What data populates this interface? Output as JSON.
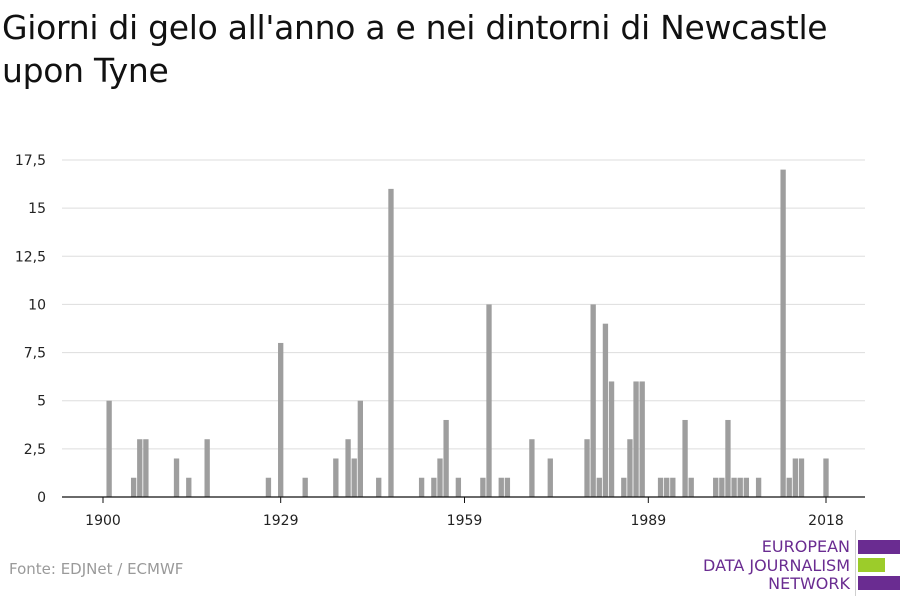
{
  "title": "Giorni di gelo all'anno a e nei dintorni di Newcastle upon Tyne",
  "source": "Fonte: EDJNet / ECMWF",
  "logo": {
    "lines": [
      "EUROPEAN",
      "DATA JOURNALISM",
      "NETWORK"
    ],
    "colors": [
      "#6a2c91",
      "#9ccc2a",
      "#6a2c91"
    ]
  },
  "colors": {
    "bar": "#9e9e9e",
    "grid": "#dddddd",
    "axis": "#111111",
    "text": "#222222"
  },
  "chart_data": {
    "type": "bar",
    "title": "Giorni di gelo all'anno a e nei dintorni di Newcastle upon Tyne",
    "xlabel": "",
    "ylabel": "",
    "x_ticks": [
      1900,
      1929,
      1959,
      1989,
      2018
    ],
    "x_tick_labels": [
      "1900",
      "1929",
      "1959",
      "1989",
      "2018"
    ],
    "xlim": [
      1900,
      2018
    ],
    "ylim": [
      0,
      17.5
    ],
    "y_ticks": [
      0,
      2.5,
      5,
      7.5,
      10,
      12.5,
      15,
      17.5
    ],
    "y_tick_labels": [
      "0",
      "2,5",
      "5",
      "7,5",
      "10",
      "12,5",
      "15",
      "17,5"
    ],
    "grid": true,
    "categories": [
      1901,
      1905,
      1906,
      1907,
      1912,
      1914,
      1917,
      1927,
      1929,
      1933,
      1938,
      1940,
      1941,
      1942,
      1945,
      1947,
      1952,
      1954,
      1955,
      1956,
      1958,
      1962,
      1963,
      1965,
      1966,
      1970,
      1973,
      1979,
      1980,
      1981,
      1982,
      1983,
      1985,
      1986,
      1987,
      1988,
      1991,
      1992,
      1993,
      1995,
      1996,
      2000,
      2001,
      2002,
      2003,
      2004,
      2005,
      2007,
      2011,
      2012,
      2013,
      2014,
      2018
    ],
    "values": [
      5,
      1,
      3,
      3,
      2,
      1,
      3,
      1,
      8,
      1,
      2,
      3,
      2,
      5,
      1,
      16,
      1,
      1,
      2,
      4,
      1,
      1,
      10,
      1,
      1,
      3,
      2,
      3,
      10,
      1,
      9,
      6,
      1,
      3,
      6,
      6,
      1,
      1,
      1,
      4,
      1,
      1,
      1,
      4,
      1,
      1,
      1,
      1,
      17,
      1,
      2,
      2,
      2
    ]
  }
}
